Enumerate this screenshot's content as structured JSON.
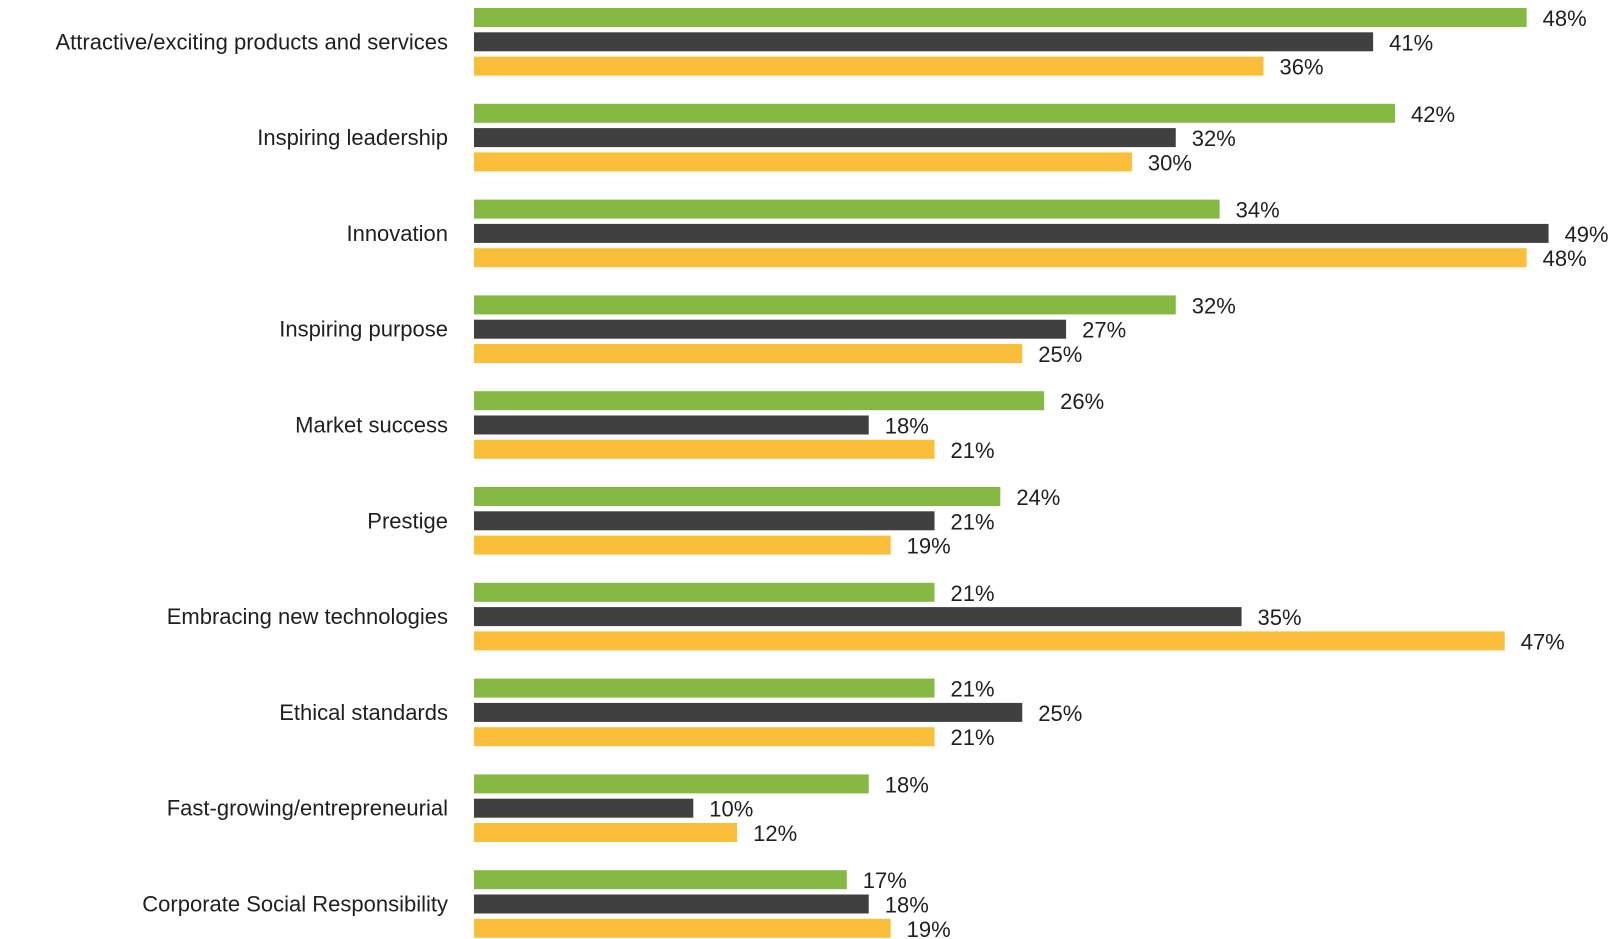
{
  "chart_data": {
    "type": "bar",
    "orientation": "horizontal",
    "title": "",
    "xlabel": "",
    "ylabel": "",
    "xlim": [
      0,
      50
    ],
    "grid": false,
    "legend": "none",
    "value_suffix": "%",
    "categories": [
      "Attractive/exciting products and services",
      "Inspiring leadership",
      "Innovation",
      "Inspiring purpose",
      "Market success",
      "Prestige",
      "Embracing new technologies",
      "Ethical standards",
      "Fast-growing/entrepreneurial",
      "Corporate Social Responsibility"
    ],
    "series": [
      {
        "color": "#86b943",
        "values": [
          48,
          42,
          34,
          32,
          26,
          24,
          21,
          21,
          18,
          17
        ]
      },
      {
        "color": "#404040",
        "values": [
          41,
          32,
          49,
          27,
          18,
          21,
          35,
          25,
          10,
          18
        ]
      },
      {
        "color": "#fbbe3a",
        "values": [
          36,
          30,
          48,
          25,
          21,
          19,
          47,
          21,
          12,
          19
        ]
      }
    ]
  }
}
